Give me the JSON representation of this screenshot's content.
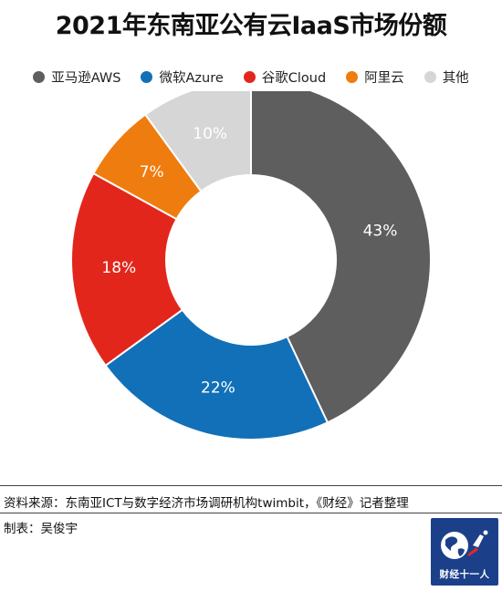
{
  "chart_data": {
    "type": "pie",
    "title": "2021年东南亚公有云IaaS市场份额",
    "categories": [
      "亚马逊AWS",
      "微软Azure",
      "谷歌Cloud",
      "阿里云",
      "其他"
    ],
    "values": [
      43,
      22,
      18,
      7,
      10
    ],
    "labels": [
      "43%",
      "22%",
      "18%",
      "7%",
      "10%"
    ],
    "colors": [
      "#5e5e5e",
      "#1170b8",
      "#e3261b",
      "#ef7c0e",
      "#d6d6d6"
    ],
    "donut": true,
    "legend_position": "top"
  },
  "footer": {
    "source": "资料来源：东南亚ICT与数字经济市场调研机构twimbit，《财经》记者整理",
    "maker": "制表：吴俊宇",
    "logo_text": "财经十一人"
  }
}
